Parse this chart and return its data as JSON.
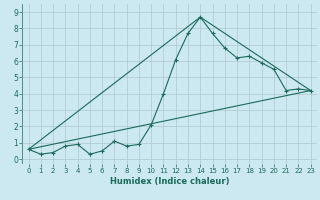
{
  "title": "",
  "xlabel": "Humidex (Indice chaleur)",
  "ylabel": "",
  "bg_color": "#cce8f0",
  "grid_color": "#b0c8d0",
  "line_color": "#1a6b5a",
  "xlim": [
    -0.5,
    23.5
  ],
  "ylim": [
    -0.3,
    9.5
  ],
  "xticks": [
    0,
    1,
    2,
    3,
    4,
    5,
    6,
    7,
    8,
    9,
    10,
    11,
    12,
    13,
    14,
    15,
    16,
    17,
    18,
    19,
    20,
    21,
    22,
    23
  ],
  "yticks": [
    0,
    1,
    2,
    3,
    4,
    5,
    6,
    7,
    8,
    9
  ],
  "series1_x": [
    0,
    1,
    2,
    3,
    4,
    5,
    6,
    7,
    8,
    9,
    10,
    11,
    12,
    13,
    14,
    15,
    16,
    17,
    18,
    19,
    20,
    21,
    22,
    23
  ],
  "series1_y": [
    0.6,
    0.3,
    0.4,
    0.8,
    0.9,
    0.3,
    0.5,
    1.1,
    0.8,
    0.9,
    2.1,
    4.0,
    6.1,
    7.7,
    8.7,
    7.7,
    6.8,
    6.2,
    6.3,
    5.9,
    5.5,
    4.2,
    4.3,
    4.2
  ],
  "series2_x": [
    0,
    23
  ],
  "series2_y": [
    0.6,
    4.2
  ],
  "series3_x": [
    0,
    14,
    23
  ],
  "series3_y": [
    0.6,
    8.7,
    4.2
  ],
  "tick_fontsize": 5.0,
  "xlabel_fontsize": 6.0
}
